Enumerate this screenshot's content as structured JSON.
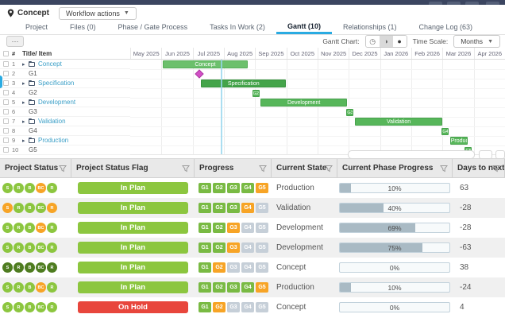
{
  "toolbar": {
    "location_label": "Concept",
    "workflow_button": "Workflow actions",
    "more_button": "⋯"
  },
  "tabs": [
    {
      "label": "Project",
      "active": false
    },
    {
      "label": "Files (0)",
      "active": false
    },
    {
      "label": "Phase / Gate Process",
      "active": false
    },
    {
      "label": "Tasks In Work (2)",
      "active": false
    },
    {
      "label": "Gantt (10)",
      "active": true
    },
    {
      "label": "Relationships (1)",
      "active": false
    },
    {
      "label": "Change Log (63)",
      "active": false
    }
  ],
  "gantt_controls": {
    "chart_label": "Gantt Chart:",
    "view_icons": [
      "clock-view",
      "half-view",
      "filled-view"
    ],
    "selected_view": 1,
    "time_scale_label": "Time Scale:",
    "time_scale_value": "Months"
  },
  "chart_data": {
    "type": "gantt",
    "left_header": {
      "number": "#",
      "title": "Title/ Item"
    },
    "months": [
      "May 2025",
      "Jun 2025",
      "Jul 2025",
      "Aug 2025",
      "Sep 2025",
      "Oct 2025",
      "Nov 2025",
      "Dec 2025",
      "Jan 2026",
      "Feb 2026",
      "Mar 2026",
      "Apr 2026"
    ],
    "today_month": 2.9,
    "rows": [
      {
        "num": "1",
        "title": "Concept",
        "type": "phase"
      },
      {
        "num": "2",
        "title": "G1",
        "type": "gate"
      },
      {
        "num": "3",
        "title": "Specification",
        "type": "phase"
      },
      {
        "num": "4",
        "title": "G2",
        "type": "gate"
      },
      {
        "num": "5",
        "title": "Development",
        "type": "phase"
      },
      {
        "num": "6",
        "title": "G3",
        "type": "gate"
      },
      {
        "num": "7",
        "title": "Validation",
        "type": "phase"
      },
      {
        "num": "8",
        "title": "G4",
        "type": "gate"
      },
      {
        "num": "9",
        "title": "Production",
        "type": "phase"
      },
      {
        "num": "10",
        "title": "G5",
        "type": "gate"
      }
    ],
    "bars": [
      {
        "type": "bar",
        "row": 1,
        "label": "Concept",
        "color": "light",
        "start": 1.03,
        "end": 3.77
      },
      {
        "type": "milestone",
        "row": 2,
        "label": "G1",
        "center": 2.2
      },
      {
        "type": "bar",
        "row": 3,
        "label": "Specification",
        "color": "dark",
        "start": 2.27,
        "end": 4.99
      },
      {
        "type": "gate",
        "row": 4,
        "label": "G2",
        "center": 4.02
      },
      {
        "type": "bar",
        "row": 5,
        "label": "Development",
        "color": "mid",
        "start": 4.18,
        "end": 6.94
      },
      {
        "type": "gate",
        "row": 6,
        "label": "G3",
        "center": 7.04
      },
      {
        "type": "bar",
        "row": 7,
        "label": "Validation",
        "color": "mid",
        "start": 7.2,
        "end": 9.99
      },
      {
        "type": "gate",
        "row": 8,
        "label": "G4",
        "center": 10.09
      },
      {
        "type": "bar",
        "row": 9,
        "label": "Production",
        "color": "mid",
        "start": 10.24,
        "end": 10.8
      },
      {
        "type": "gate",
        "row": 10,
        "label": "G5",
        "center": 10.83
      }
    ]
  },
  "table": {
    "status_letters": [
      "S",
      "R",
      "B",
      "BC",
      "R"
    ],
    "gate_labels": [
      "G1",
      "G2",
      "G3",
      "G4",
      "G5"
    ],
    "headers": [
      "Project Status",
      "Project Status Flag",
      "Progress",
      "Current State",
      "Current Phase Progress",
      "Days to next …"
    ],
    "rows": [
      {
        "status": [
          "g",
          "g",
          "g",
          "o",
          "g"
        ],
        "flag": "In Plan",
        "flag_color": "green",
        "gates": [
          "g",
          "g",
          "g",
          "g",
          "o"
        ],
        "state": "Production",
        "progress_label": "10%",
        "progress_pct": 10,
        "days": "63"
      },
      {
        "status": [
          "o",
          "g",
          "g",
          "g",
          "o"
        ],
        "flag": "In Plan",
        "flag_color": "green",
        "gates": [
          "g",
          "g",
          "g",
          "o",
          "x"
        ],
        "state": "Validation",
        "progress_label": "40%",
        "progress_pct": 40,
        "days": "-28"
      },
      {
        "status": [
          "g",
          "g",
          "g",
          "o",
          "g"
        ],
        "flag": "In Plan",
        "flag_color": "green",
        "gates": [
          "g",
          "g",
          "o",
          "x",
          "x"
        ],
        "state": "Development",
        "progress_label": "69%",
        "progress_pct": 69,
        "days": "-28"
      },
      {
        "status": [
          "g",
          "g",
          "g",
          "g",
          "g"
        ],
        "flag": "In Plan",
        "flag_color": "green",
        "gates": [
          "g",
          "g",
          "o",
          "x",
          "x"
        ],
        "state": "Development",
        "progress_label": "75%",
        "progress_pct": 75,
        "days": "-63"
      },
      {
        "status": [
          "d",
          "d",
          "d",
          "d",
          "d"
        ],
        "flag": "In Plan",
        "flag_color": "green",
        "gates": [
          "g",
          "o",
          "x",
          "x",
          "x"
        ],
        "state": "Concept",
        "progress_label": "0%",
        "progress_pct": 0,
        "days": "38"
      },
      {
        "status": [
          "g",
          "g",
          "g",
          "o",
          "g"
        ],
        "flag": "In Plan",
        "flag_color": "green",
        "gates": [
          "g",
          "g",
          "g",
          "g",
          "o"
        ],
        "state": "Production",
        "progress_label": "10%",
        "progress_pct": 10,
        "days": "-24"
      },
      {
        "status": [
          "g",
          "g",
          "g",
          "g",
          "g"
        ],
        "flag": "On Hold",
        "flag_color": "red",
        "gates": [
          "g",
          "o",
          "x",
          "x",
          "x"
        ],
        "state": "Concept",
        "progress_label": "0%",
        "progress_pct": 0,
        "days": "4"
      }
    ]
  },
  "colors": {
    "accent_blue": "#2aabe2",
    "top_strip": "#3b4560",
    "phase_link": "#3b9fc7",
    "bar_light_green": "#6cc06c",
    "bar_dark_green": "#44a44a",
    "bar_mid_green": "#57b65a",
    "milestone_pink": "#d24fc6",
    "status_green": "#8cc63f",
    "status_orange": "#f7a426",
    "status_dark_green": "#4e7c20",
    "flag_red": "#e8463c",
    "gate_gray": "#c6cfd8",
    "progress_fill": "#a9bac4"
  }
}
